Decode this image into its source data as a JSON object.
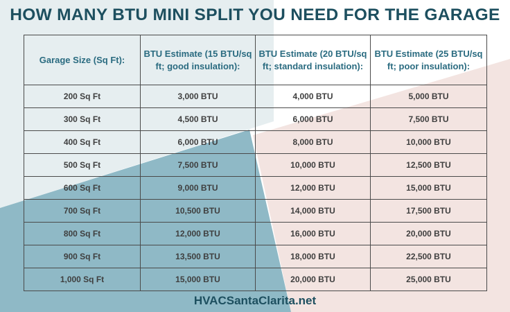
{
  "title": "HOW MANY BTU MINI SPLIT YOU NEED FOR THE GARAGE",
  "colors": {
    "title": "#1d4f5f",
    "header_text": "#2a6b80",
    "bg_light_blue": "#e6eef0",
    "bg_teal": "#8fb9c6",
    "bg_pink": "#f3e4e1",
    "bg_white": "#ffffff"
  },
  "table": {
    "headers": [
      "Garage Size (Sq Ft):",
      "BTU Estimate (15 BTU/sq ft; good insulation):",
      "BTU Estimate (20 BTU/sq ft; standard insulation):",
      "BTU Estimate (25 BTU/sq ft; poor insulation):"
    ],
    "rows": [
      [
        "200 Sq Ft",
        "3,000 BTU",
        "4,000 BTU",
        "5,000 BTU"
      ],
      [
        "300 Sq Ft",
        "4,500 BTU",
        "6,000 BTU",
        "7,500 BTU"
      ],
      [
        "400 Sq Ft",
        "6,000 BTU",
        "8,000 BTU",
        "10,000 BTU"
      ],
      [
        "500 Sq Ft",
        "7,500 BTU",
        "10,000 BTU",
        "12,500 BTU"
      ],
      [
        "600 Sq Ft",
        "9,000 BTU",
        "12,000 BTU",
        "15,000 BTU"
      ],
      [
        "700 Sq Ft",
        "10,500 BTU",
        "14,000 BTU",
        "17,500 BTU"
      ],
      [
        "800 Sq Ft",
        "12,000 BTU",
        "16,000 BTU",
        "20,000 BTU"
      ],
      [
        "900 Sq Ft",
        "13,500 BTU",
        "18,000 BTU",
        "22,500 BTU"
      ],
      [
        "1,000 Sq Ft",
        "15,000 BTU",
        "20,000 BTU",
        "25,000 BTU"
      ]
    ]
  },
  "footer": "HVACSantaClarita.net"
}
